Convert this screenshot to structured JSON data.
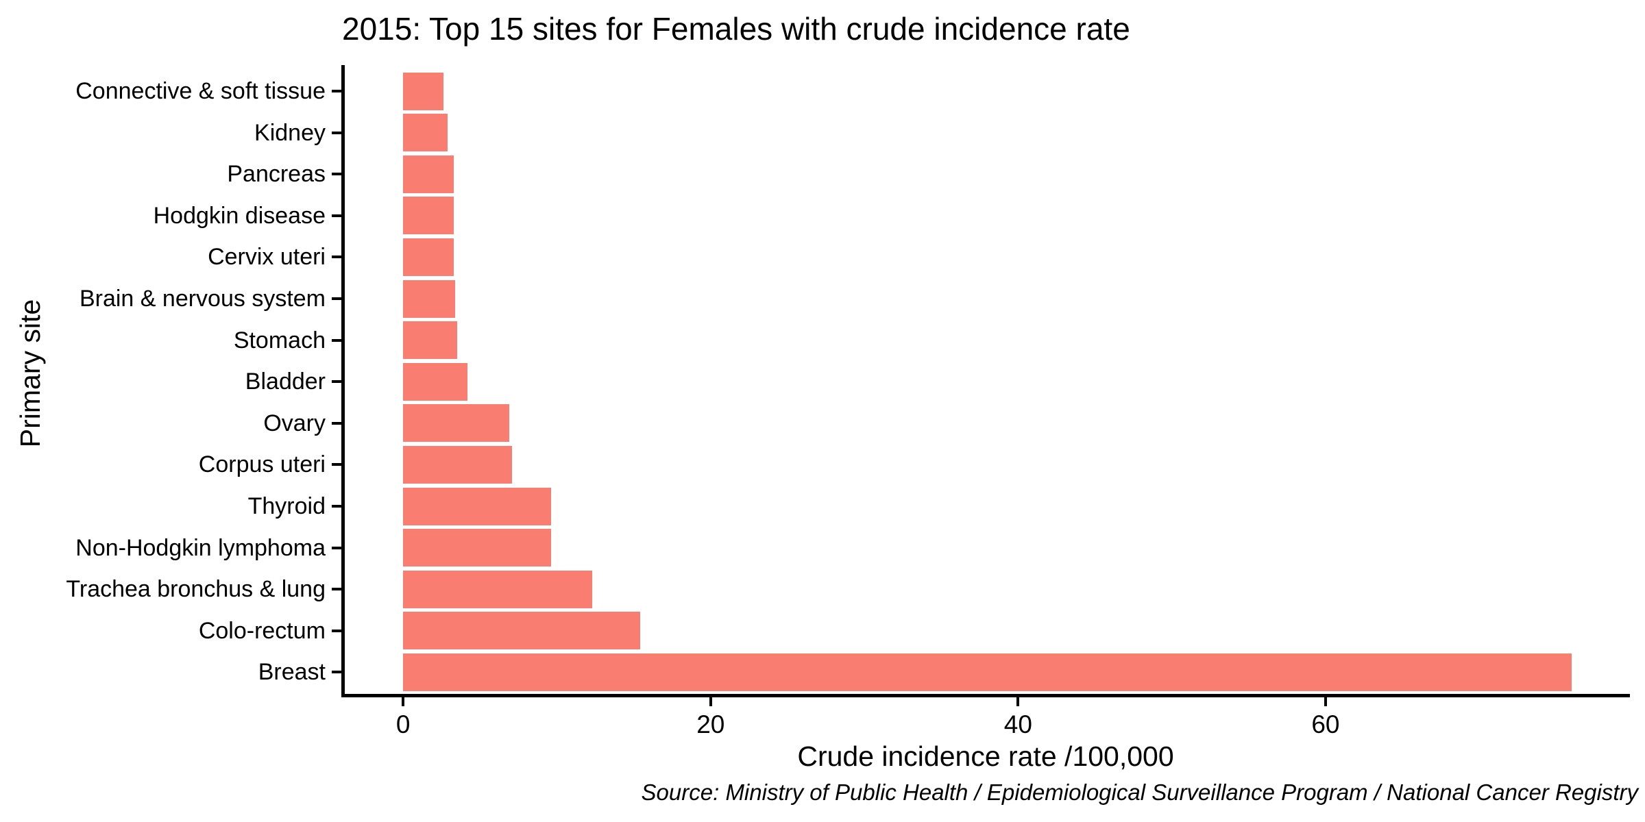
{
  "chart_data": {
    "type": "bar",
    "orientation": "horizontal",
    "title": "2015: Top 15 sites for Females with crude incidence rate",
    "xlabel": "Crude incidence rate /100,000",
    "ylabel": "Primary site",
    "source_note": "Source: Ministry of Public Health / Epidemiological Surveillance Program / National Cancer Registry",
    "categories_top_to_bottom": [
      "Connective & soft tissue",
      "Kidney",
      "Pancreas",
      "Hodgkin disease",
      "Cervix uteri",
      "Brain & nervous system",
      "Stomach",
      "Bladder",
      "Ovary",
      "Corpus uteri",
      "Thyroid",
      "Non-Hodgkin lymphoma",
      "Trachea bronchus & lung",
      "Colo-rectum",
      "Breast"
    ],
    "values": [
      2.6,
      2.9,
      3.3,
      3.3,
      3.3,
      3.4,
      3.5,
      4.2,
      6.9,
      7.1,
      9.6,
      9.6,
      12.3,
      15.4,
      76.0
    ],
    "x_ticks": [
      0,
      20,
      40,
      60
    ],
    "xlim": [
      -3.8,
      79.8
    ],
    "bar_color": "#F97D70",
    "axis_color": "#000000",
    "grid": "off",
    "legend": "none"
  }
}
